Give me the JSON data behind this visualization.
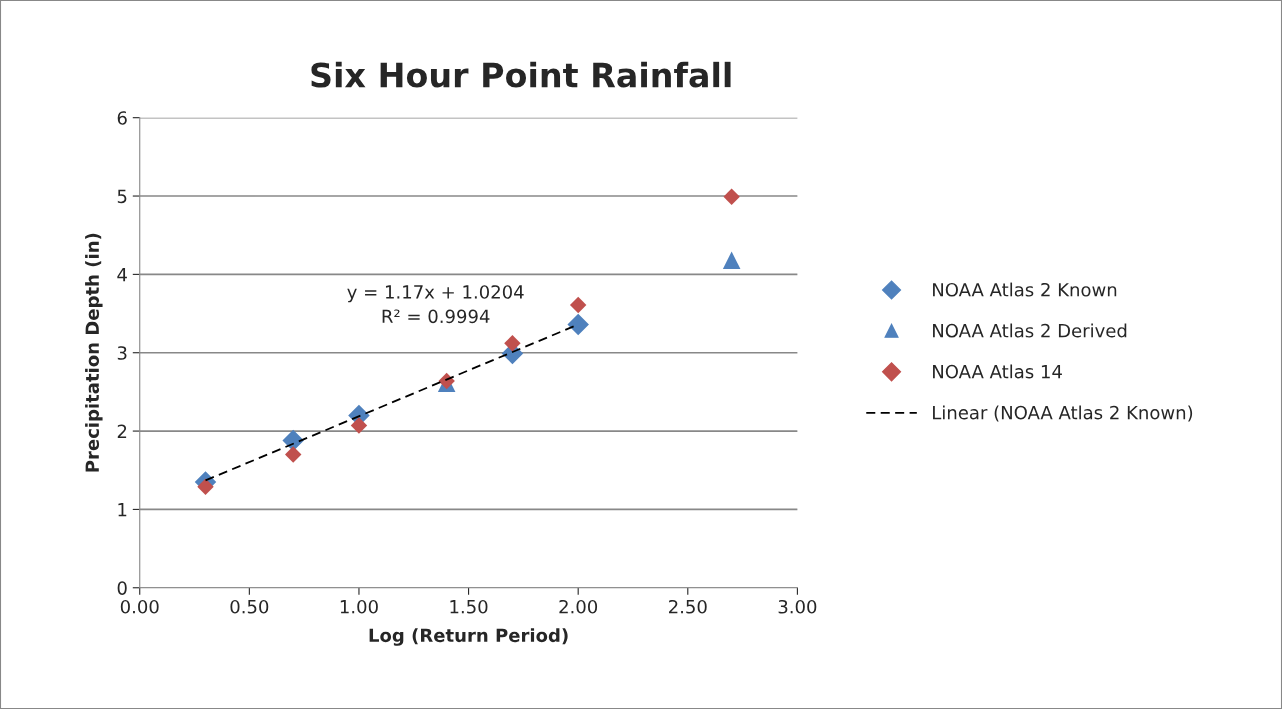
{
  "chart_data": {
    "type": "scatter",
    "title": "Six Hour Point Rainfall",
    "xlabel": "Log (Return Period)",
    "ylabel": "Precipitation Depth (in)",
    "series": [
      {
        "name": "NOAA Atlas 2 Known",
        "color": "#4f81bd",
        "marker": "diamond",
        "x": [
          0.3,
          0.7,
          1.0,
          1.7,
          2.0
        ],
        "values": [
          1.35,
          1.88,
          2.2,
          2.99,
          3.36
        ]
      },
      {
        "name": "NOAA Atlas 2 Derived",
        "color": "#4f81bd",
        "marker": "triangle",
        "x": [
          1.4,
          2.7
        ],
        "values": [
          2.61,
          4.18
        ]
      },
      {
        "name": "NOAA Atlas 14",
        "color": "#c0504d",
        "marker": "diamond",
        "x": [
          0.3,
          0.7,
          1.0,
          1.4,
          1.7,
          2.0,
          2.7
        ],
        "values": [
          1.29,
          1.7,
          2.07,
          2.64,
          3.12,
          3.61,
          4.99
        ]
      },
      {
        "name": "Linear (NOAA Atlas 2 Known)",
        "type": "line",
        "color": "#000000",
        "line_style": "dashed",
        "marker": "none",
        "x": [
          0.3,
          2.0
        ],
        "values": [
          1.37,
          3.36
        ]
      }
    ],
    "annotations": [
      "y = 1.17x + 1.0204\nR² = 0.9994"
    ],
    "xlim": [
      0,
      3
    ],
    "xticks": [
      {
        "value": 0,
        "label": "0.00"
      },
      {
        "value": 0.5,
        "label": "0.50"
      },
      {
        "value": 1,
        "label": "1.00"
      },
      {
        "value": 1.5,
        "label": "1.50"
      },
      {
        "value": 2,
        "label": "2.00"
      },
      {
        "value": 2.5,
        "label": "2.50"
      },
      {
        "value": 3,
        "label": "3.00"
      }
    ],
    "ylim": [
      0,
      6
    ],
    "yticks": [
      0,
      1,
      2,
      3,
      4,
      5,
      6
    ],
    "grid": "y",
    "legend": "right"
  }
}
